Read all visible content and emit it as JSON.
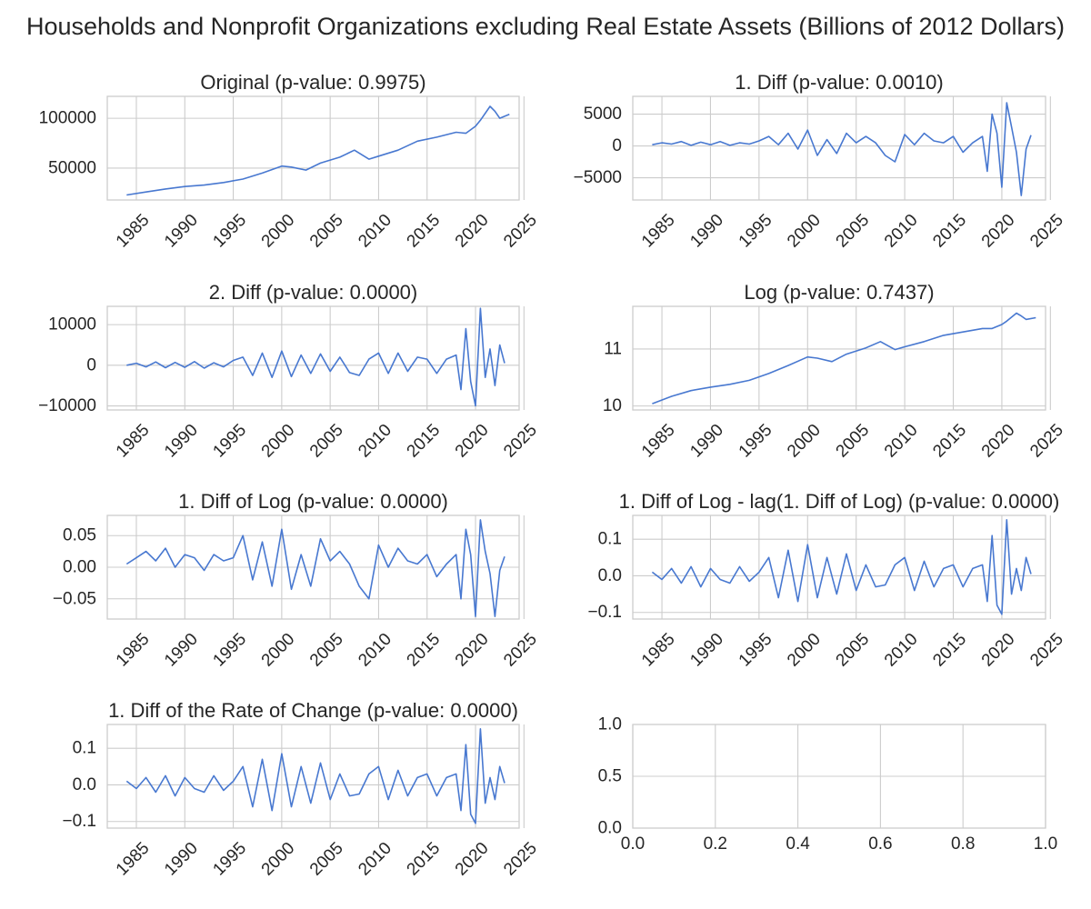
{
  "figure": {
    "title": "Households and Nonprofit Organizations excluding Real Estate Assets (Billions of 2012 Dollars)"
  },
  "style": {
    "line_color": "#4878d0",
    "grid_color": "#cccccc",
    "axes_edge_color": "#cccccc"
  },
  "chart_data": [
    {
      "type": "line",
      "title": "Original (p-value: 0.9975)",
      "xlim": [
        1982.0,
        2024.5
      ],
      "ylim": [
        18000,
        122000
      ],
      "xticks": [
        "1985",
        "1990",
        "1995",
        "2000",
        "2005",
        "2010",
        "2015",
        "2020",
        "2025"
      ],
      "yticks": [
        50000,
        100000
      ],
      "ytick_labels": [
        "50000",
        "100000"
      ],
      "xlabel": "",
      "ylabel": "",
      "grid": true,
      "series": [
        {
          "x": [
            1984.0,
            1986.0,
            1988.0,
            1990.0,
            1992.0,
            1994.0,
            1996.0,
            1998.0,
            2000.0,
            2001.0,
            2002.5,
            2004.0,
            2006.0,
            2007.5,
            2009.0,
            2010.0,
            2012.0,
            2014.0,
            2016.0,
            2018.0,
            2019.0,
            2020.0,
            2020.5,
            2021.5,
            2022.0,
            2022.5,
            2023.5
          ],
          "y": [
            23000,
            26000,
            29000,
            31500,
            33000,
            35500,
            39000,
            45000,
            52000,
            51000,
            48000,
            55000,
            61000,
            68000,
            59000,
            62000,
            68000,
            77000,
            81000,
            86000,
            85000,
            92000,
            98000,
            112000,
            107000,
            100000,
            104000
          ]
        }
      ]
    },
    {
      "type": "line",
      "title": "1. Diff (p-value: 0.0010)",
      "xlim": [
        1982.0,
        2024.5
      ],
      "ylim": [
        -8500,
        7800
      ],
      "xticks": [
        "1985",
        "1990",
        "1995",
        "2000",
        "2005",
        "2010",
        "2015",
        "2020",
        "2025"
      ],
      "yticks": [
        -5000,
        0,
        5000
      ],
      "ytick_labels": [
        "−5000",
        "0",
        "5000"
      ],
      "xlabel": "",
      "ylabel": "",
      "grid": true,
      "series": [
        {
          "x": [
            1984.0,
            1985.0,
            1986.0,
            1987.0,
            1988.0,
            1989.0,
            1990.0,
            1991.0,
            1992.0,
            1993.0,
            1994.0,
            1995.0,
            1996.0,
            1997.0,
            1998.0,
            1999.0,
            2000.0,
            2001.0,
            2002.0,
            2003.0,
            2004.0,
            2005.0,
            2006.0,
            2007.0,
            2008.0,
            2009.0,
            2010.0,
            2011.0,
            2012.0,
            2013.0,
            2014.0,
            2015.0,
            2016.0,
            2017.0,
            2018.0,
            2018.5,
            2019.0,
            2019.5,
            2020.0,
            2020.5,
            2021.0,
            2021.5,
            2022.0,
            2022.5,
            2023.0
          ],
          "y": [
            200,
            500,
            300,
            700,
            100,
            600,
            200,
            700,
            100,
            500,
            300,
            800,
            1500,
            200,
            2000,
            -500,
            2500,
            -1500,
            1000,
            -1200,
            2000,
            500,
            1500,
            500,
            -1500,
            -2500,
            1800,
            200,
            2000,
            800,
            500,
            1500,
            -1000,
            500,
            1500,
            -4000,
            5000,
            2000,
            -6500,
            6800,
            3000,
            -1000,
            -7800,
            -500,
            1700
          ]
        }
      ]
    },
    {
      "type": "line",
      "title": "2. Diff (p-value: 0.0000)",
      "xlim": [
        1982.0,
        2024.5
      ],
      "ylim": [
        -11000,
        14500
      ],
      "xticks": [
        "1985",
        "1990",
        "1995",
        "2000",
        "2005",
        "2010",
        "2015",
        "2020",
        "2025"
      ],
      "yticks": [
        -10000,
        0,
        10000
      ],
      "ytick_labels": [
        "−10000",
        "0",
        "10000"
      ],
      "xlabel": "",
      "ylabel": "",
      "grid": true,
      "series": [
        {
          "x": [
            1984.0,
            1985.0,
            1986.0,
            1987.0,
            1988.0,
            1989.0,
            1990.0,
            1991.0,
            1992.0,
            1993.0,
            1994.0,
            1995.0,
            1996.0,
            1997.0,
            1998.0,
            1999.0,
            2000.0,
            2001.0,
            2002.0,
            2003.0,
            2004.0,
            2005.0,
            2006.0,
            2007.0,
            2008.0,
            2009.0,
            2010.0,
            2011.0,
            2012.0,
            2013.0,
            2014.0,
            2015.0,
            2016.0,
            2017.0,
            2018.0,
            2018.5,
            2019.0,
            2019.5,
            2020.0,
            2020.5,
            2021.0,
            2021.5,
            2022.0,
            2022.5,
            2023.0
          ],
          "y": [
            0,
            500,
            -400,
            800,
            -600,
            700,
            -500,
            900,
            -700,
            600,
            -400,
            1200,
            2000,
            -2500,
            3000,
            -3000,
            3500,
            -2800,
            2500,
            -2000,
            2800,
            -1500,
            2000,
            -1800,
            -2500,
            1500,
            3000,
            -2000,
            3000,
            -1500,
            2000,
            1500,
            -2000,
            1500,
            2500,
            -6000,
            9000,
            -4000,
            -10000,
            14000,
            -3000,
            4000,
            -5000,
            5000,
            500
          ]
        }
      ]
    },
    {
      "type": "line",
      "title": "Log (p-value: 0.7437)",
      "xlim": [
        1982.0,
        2024.5
      ],
      "ylim": [
        9.93,
        11.75
      ],
      "xticks": [
        "1985",
        "1990",
        "1995",
        "2000",
        "2005",
        "2010",
        "2015",
        "2020",
        "2025"
      ],
      "yticks": [
        10,
        11
      ],
      "ytick_labels": [
        "10",
        "11"
      ],
      "xlabel": "",
      "ylabel": "",
      "grid": true,
      "series": [
        {
          "x": [
            1984.0,
            1986.0,
            1988.0,
            1990.0,
            1992.0,
            1994.0,
            1996.0,
            1998.0,
            2000.0,
            2001.0,
            2002.5,
            2004.0,
            2006.0,
            2007.5,
            2009.0,
            2010.0,
            2012.0,
            2014.0,
            2016.0,
            2018.0,
            2019.0,
            2020.0,
            2020.5,
            2021.5,
            2022.0,
            2022.5,
            2023.5
          ],
          "y": [
            10.04,
            10.17,
            10.27,
            10.33,
            10.38,
            10.45,
            10.57,
            10.71,
            10.86,
            10.84,
            10.78,
            10.91,
            11.02,
            11.13,
            10.99,
            11.04,
            11.13,
            11.24,
            11.3,
            11.36,
            11.36,
            11.43,
            11.49,
            11.63,
            11.58,
            11.52,
            11.55
          ]
        }
      ]
    },
    {
      "type": "line",
      "title": "1. Diff of Log (p-value: 0.0000)",
      "xlim": [
        1982.0,
        2024.5
      ],
      "ylim": [
        -0.082,
        0.082
      ],
      "xticks": [
        "1985",
        "1990",
        "1995",
        "2000",
        "2005",
        "2010",
        "2015",
        "2020",
        "2025"
      ],
      "yticks": [
        -0.05,
        0.0,
        0.05
      ],
      "ytick_labels": [
        "−0.05",
        "0.00",
        "0.05"
      ],
      "xlabel": "",
      "ylabel": "",
      "grid": true,
      "series": [
        {
          "x": [
            1984.0,
            1985.0,
            1986.0,
            1987.0,
            1988.0,
            1989.0,
            1990.0,
            1991.0,
            1992.0,
            1993.0,
            1994.0,
            1995.0,
            1996.0,
            1997.0,
            1998.0,
            1999.0,
            2000.0,
            2001.0,
            2002.0,
            2003.0,
            2004.0,
            2005.0,
            2006.0,
            2007.0,
            2008.0,
            2009.0,
            2010.0,
            2011.0,
            2012.0,
            2013.0,
            2014.0,
            2015.0,
            2016.0,
            2017.0,
            2018.0,
            2018.5,
            2019.0,
            2019.5,
            2020.0,
            2020.5,
            2021.0,
            2021.5,
            2022.0,
            2022.5,
            2023.0
          ],
          "y": [
            0.005,
            0.015,
            0.025,
            0.01,
            0.03,
            0.0,
            0.02,
            0.015,
            -0.005,
            0.02,
            0.01,
            0.015,
            0.05,
            -0.02,
            0.04,
            -0.03,
            0.06,
            -0.035,
            0.02,
            -0.03,
            0.045,
            0.01,
            0.025,
            0.005,
            -0.03,
            -0.05,
            0.035,
            0.0,
            0.03,
            0.01,
            0.005,
            0.02,
            -0.015,
            0.005,
            0.02,
            -0.05,
            0.06,
            0.02,
            -0.078,
            0.075,
            0.025,
            -0.01,
            -0.078,
            -0.005,
            0.017
          ]
        }
      ]
    },
    {
      "type": "line",
      "title": "1. Diff of Log - lag(1. Diff of Log) (p-value: 0.0000)",
      "xlim": [
        1982.0,
        2024.5
      ],
      "ylim": [
        -0.118,
        0.165
      ],
      "xticks": [
        "1985",
        "1990",
        "1995",
        "2000",
        "2005",
        "2010",
        "2015",
        "2020",
        "2025"
      ],
      "yticks": [
        -0.1,
        0.0,
        0.1
      ],
      "ytick_labels": [
        "−0.1",
        "0.0",
        "0.1"
      ],
      "xlabel": "",
      "ylabel": "",
      "grid": true,
      "series": [
        {
          "x": [
            1984.0,
            1985.0,
            1986.0,
            1987.0,
            1988.0,
            1989.0,
            1990.0,
            1991.0,
            1992.0,
            1993.0,
            1994.0,
            1995.0,
            1996.0,
            1997.0,
            1998.0,
            1999.0,
            2000.0,
            2001.0,
            2002.0,
            2003.0,
            2004.0,
            2005.0,
            2006.0,
            2007.0,
            2008.0,
            2009.0,
            2010.0,
            2011.0,
            2012.0,
            2013.0,
            2014.0,
            2015.0,
            2016.0,
            2017.0,
            2018.0,
            2018.5,
            2019.0,
            2019.5,
            2020.0,
            2020.5,
            2021.0,
            2021.5,
            2022.0,
            2022.5,
            2023.0
          ],
          "y": [
            0.01,
            -0.01,
            0.02,
            -0.02,
            0.025,
            -0.03,
            0.02,
            -0.01,
            -0.02,
            0.025,
            -0.015,
            0.01,
            0.05,
            -0.06,
            0.07,
            -0.07,
            0.085,
            -0.06,
            0.05,
            -0.05,
            0.06,
            -0.04,
            0.03,
            -0.03,
            -0.025,
            0.03,
            0.05,
            -0.04,
            0.04,
            -0.03,
            0.02,
            0.03,
            -0.03,
            0.02,
            0.03,
            -0.07,
            0.11,
            -0.08,
            -0.105,
            0.153,
            -0.05,
            0.02,
            -0.04,
            0.05,
            0.005
          ]
        }
      ]
    },
    {
      "type": "line",
      "title": "1. Diff of the Rate of Change (p-value: 0.0000)",
      "xlim": [
        1982.0,
        2024.5
      ],
      "ylim": [
        -0.118,
        0.165
      ],
      "xticks": [
        "1985",
        "1990",
        "1995",
        "2000",
        "2005",
        "2010",
        "2015",
        "2020",
        "2025"
      ],
      "yticks": [
        -0.1,
        0.0,
        0.1
      ],
      "ytick_labels": [
        "−0.1",
        "0.0",
        "0.1"
      ],
      "xlabel": "",
      "ylabel": "",
      "grid": true,
      "series": [
        {
          "x": [
            1984.0,
            1985.0,
            1986.0,
            1987.0,
            1988.0,
            1989.0,
            1990.0,
            1991.0,
            1992.0,
            1993.0,
            1994.0,
            1995.0,
            1996.0,
            1997.0,
            1998.0,
            1999.0,
            2000.0,
            2001.0,
            2002.0,
            2003.0,
            2004.0,
            2005.0,
            2006.0,
            2007.0,
            2008.0,
            2009.0,
            2010.0,
            2011.0,
            2012.0,
            2013.0,
            2014.0,
            2015.0,
            2016.0,
            2017.0,
            2018.0,
            2018.5,
            2019.0,
            2019.5,
            2020.0,
            2020.5,
            2021.0,
            2021.5,
            2022.0,
            2022.5,
            2023.0
          ],
          "y": [
            0.01,
            -0.01,
            0.02,
            -0.02,
            0.025,
            -0.03,
            0.02,
            -0.01,
            -0.02,
            0.025,
            -0.015,
            0.01,
            0.05,
            -0.06,
            0.07,
            -0.07,
            0.085,
            -0.06,
            0.05,
            -0.05,
            0.06,
            -0.04,
            0.03,
            -0.03,
            -0.025,
            0.03,
            0.05,
            -0.04,
            0.04,
            -0.03,
            0.02,
            0.03,
            -0.03,
            0.02,
            0.03,
            -0.07,
            0.11,
            -0.08,
            -0.105,
            0.153,
            -0.05,
            0.02,
            -0.04,
            0.05,
            0.005
          ]
        }
      ]
    },
    {
      "type": "line",
      "title": "",
      "xlim": [
        0,
        1
      ],
      "ylim": [
        0,
        1
      ],
      "xticks": [
        "0.0",
        "0.2",
        "0.4",
        "0.6",
        "0.8",
        "1.0"
      ],
      "yticks": [
        0,
        0.5,
        1
      ],
      "ytick_labels": [
        "0.0",
        "0.5",
        "1.0"
      ],
      "xlabel": "",
      "ylabel": "",
      "grid": true,
      "series": []
    }
  ]
}
